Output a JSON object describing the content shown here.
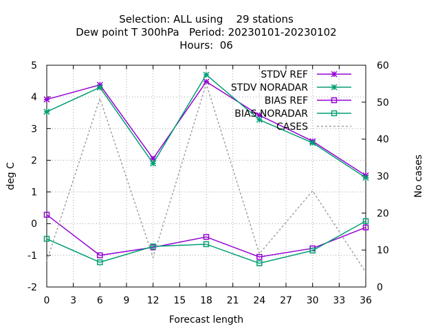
{
  "chart_data": {
    "type": "line",
    "title_lines": [
      "Selection: ALL using    29 stations",
      "Dew point T 300hPa   Period: 20230101-20230102",
      "Hours:  06"
    ],
    "xlabel": "Forecast length",
    "ylabel": "deg C",
    "y2label": "No cases",
    "x": [
      0,
      6,
      12,
      18,
      24,
      30,
      36
    ],
    "xlim": [
      0,
      36
    ],
    "ylim": [
      -2,
      5
    ],
    "y2lim": [
      0,
      60
    ],
    "x_ticks": [
      0,
      3,
      6,
      9,
      12,
      15,
      18,
      21,
      24,
      27,
      30,
      33,
      36
    ],
    "y_ticks": [
      -2,
      -1,
      0,
      1,
      2,
      3,
      4,
      5
    ],
    "y2_ticks": [
      0,
      10,
      20,
      30,
      40,
      50,
      60
    ],
    "grid": true,
    "legend_position": "top-right",
    "series": [
      {
        "name": "STDV REF",
        "values": [
          3.92,
          4.38,
          2.05,
          4.48,
          3.42,
          2.6,
          1.52
        ],
        "color": "#9400d3",
        "marker": "star",
        "axis": "left"
      },
      {
        "name": "STDV NORADAR",
        "values": [
          3.53,
          4.3,
          1.9,
          4.7,
          3.28,
          2.55,
          1.45
        ],
        "color": "#009e73",
        "marker": "star",
        "axis": "left"
      },
      {
        "name": "BIAS REF",
        "values": [
          0.28,
          -1.0,
          -0.75,
          -0.42,
          -1.05,
          -0.78,
          -0.12
        ],
        "color": "#9400d3",
        "marker": "square",
        "axis": "left"
      },
      {
        "name": "BIAS NORADAR",
        "values": [
          -0.48,
          -1.22,
          -0.72,
          -0.65,
          -1.25,
          -0.85,
          0.08
        ],
        "color": "#009e73",
        "marker": "square",
        "axis": "left"
      },
      {
        "name": "CASES",
        "values": [
          7,
          51,
          8,
          55,
          9,
          26,
          4
        ],
        "color": "#a0a0a0",
        "marker": "none",
        "dash": true,
        "axis": "right"
      }
    ]
  }
}
